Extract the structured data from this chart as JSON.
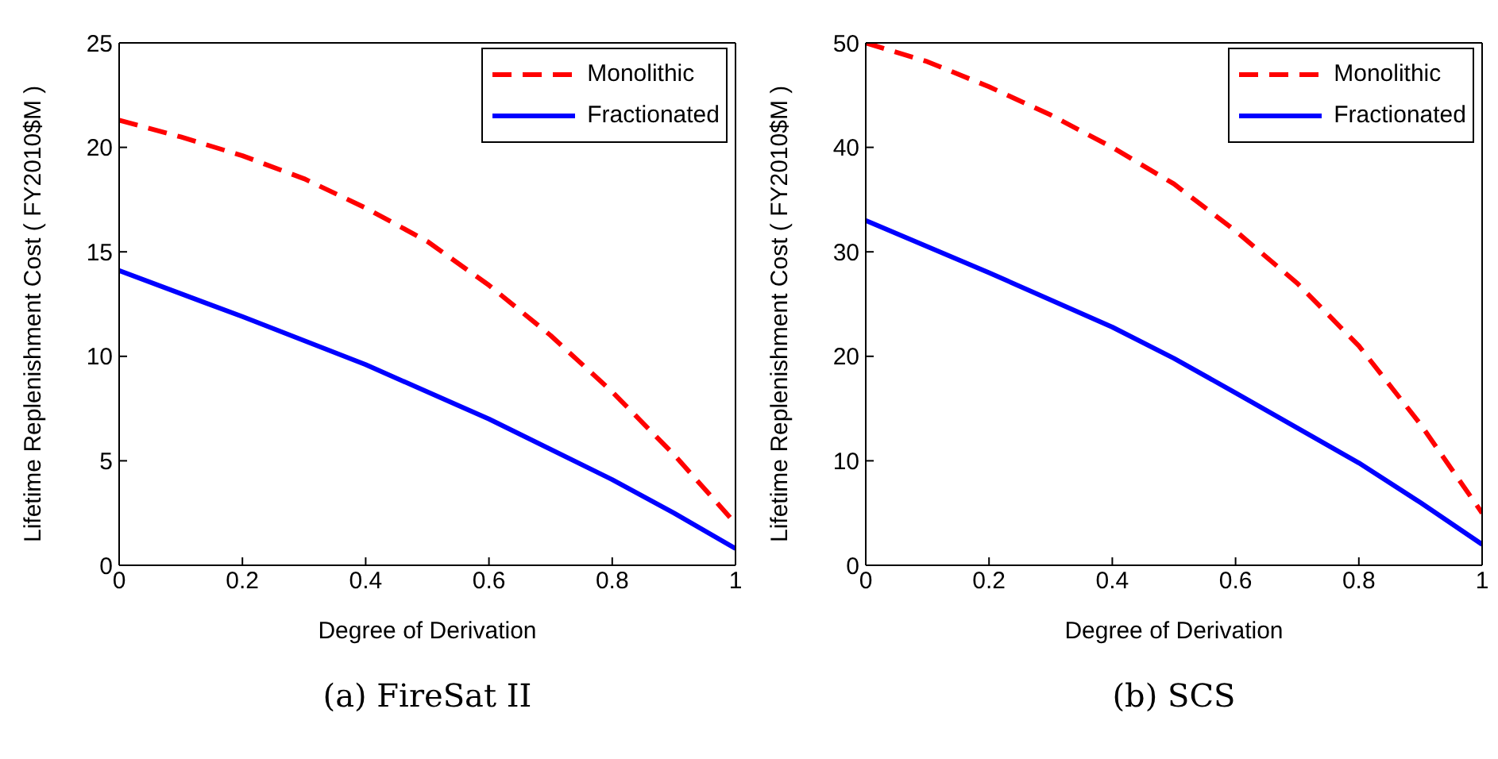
{
  "chart_data": [
    {
      "type": "line",
      "subtitle": "(a) FireSat II",
      "xlabel": "Degree of Derivation",
      "ylabel": "Lifetime Replenishment Cost ( FY2010$M )",
      "xlim": [
        0,
        1
      ],
      "xticks": [
        0,
        0.2,
        0.4,
        0.6,
        0.8,
        1
      ],
      "ylim": [
        0,
        25
      ],
      "yticks": [
        0,
        5,
        10,
        15,
        20,
        25
      ],
      "grid": false,
      "legend": "top right",
      "series": [
        {
          "name": "Monolithic",
          "color": "#ff0000",
          "line_style": "dashed",
          "x": [
            0,
            0.1,
            0.2,
            0.3,
            0.4,
            0.5,
            0.6,
            0.7,
            0.8,
            0.9,
            1
          ],
          "values": [
            21.3,
            20.5,
            19.6,
            18.5,
            17.1,
            15.5,
            13.4,
            11.0,
            8.3,
            5.3,
            2.0
          ]
        },
        {
          "name": "Fractionated",
          "color": "#0000ff",
          "line_style": "solid",
          "x": [
            0,
            0.2,
            0.4,
            0.6,
            0.8,
            0.9,
            1
          ],
          "values": [
            14.1,
            11.9,
            9.6,
            7.0,
            4.1,
            2.5,
            0.8
          ]
        }
      ]
    },
    {
      "type": "line",
      "subtitle": "(b) SCS",
      "xlabel": "Degree of Derivation",
      "ylabel": "Lifetime Replenishment Cost ( FY2010$M )",
      "xlim": [
        0,
        1
      ],
      "xticks": [
        0,
        0.2,
        0.4,
        0.6,
        0.8,
        1
      ],
      "ylim": [
        0,
        50
      ],
      "yticks": [
        0,
        10,
        20,
        30,
        40,
        50
      ],
      "grid": false,
      "legend": "top right",
      "series": [
        {
          "name": "Monolithic",
          "color": "#ff0000",
          "line_style": "dashed",
          "x": [
            0,
            0.1,
            0.2,
            0.3,
            0.4,
            0.5,
            0.6,
            0.7,
            0.8,
            0.9,
            1
          ],
          "values": [
            50,
            48.2,
            45.8,
            43.1,
            40,
            36.5,
            32,
            27,
            21,
            13.5,
            5
          ]
        },
        {
          "name": "Fractionated",
          "color": "#0000ff",
          "line_style": "solid",
          "x": [
            0,
            0.2,
            0.4,
            0.5,
            0.6,
            0.8,
            0.9,
            1
          ],
          "values": [
            33,
            28,
            22.8,
            19.8,
            16.5,
            9.8,
            6,
            2
          ]
        }
      ]
    }
  ]
}
